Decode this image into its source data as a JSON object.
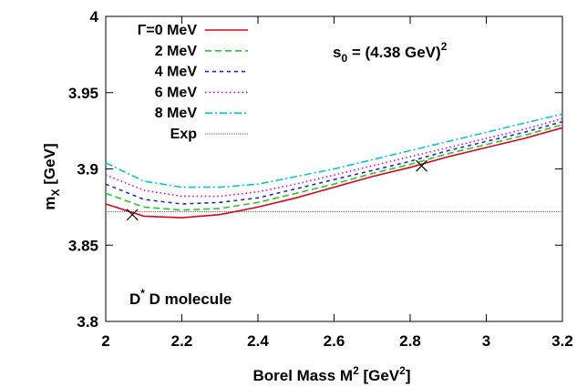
{
  "chart_data": {
    "type": "line",
    "xlabel": "Borel Mass M",
    "xlabel_sup": "2",
    "xlabel_unit_pre": " [GeV",
    "xlabel_unit_sup": "2",
    "xlabel_unit_post": "]",
    "ylabel_main": "m",
    "ylabel_sub": "X",
    "ylabel_unit": " [GeV]",
    "xlim": [
      2.0,
      3.2
    ],
    "ylim": [
      3.8,
      4.0
    ],
    "x_ticks": [
      "2",
      "2.2",
      "2.4",
      "2.6",
      "2.8",
      "3",
      "3.2"
    ],
    "x_tick_values": [
      2.0,
      2.2,
      2.4,
      2.6,
      2.8,
      3.0,
      3.2
    ],
    "y_ticks": [
      "3.8",
      "3.85",
      "3.9",
      "3.95",
      "4"
    ],
    "y_tick_values": [
      3.8,
      3.85,
      3.9,
      3.95,
      4.0
    ],
    "grid": false,
    "legend_position": "top-left",
    "x": [
      2.0,
      2.1,
      2.2,
      2.3,
      2.4,
      2.5,
      2.6,
      2.7,
      2.8,
      2.9,
      3.0,
      3.1,
      3.2
    ],
    "series": [
      {
        "name": "Γ=0 MeV",
        "color": "#e3001b",
        "dash": "solid",
        "values": [
          3.877,
          3.869,
          3.868,
          3.87,
          3.875,
          3.881,
          3.888,
          3.895,
          3.901,
          3.908,
          3.914,
          3.92,
          3.927
        ]
      },
      {
        "name": "2 MeV",
        "color": "#22cc22",
        "dash": "dashed",
        "values": [
          3.884,
          3.875,
          3.873,
          3.874,
          3.878,
          3.884,
          3.89,
          3.897,
          3.903,
          3.91,
          3.916,
          3.922,
          3.929
        ]
      },
      {
        "name": "4 MeV",
        "color": "#1c2bd6",
        "dash": "dashed-short",
        "values": [
          3.89,
          3.88,
          3.877,
          3.878,
          3.881,
          3.887,
          3.893,
          3.899,
          3.905,
          3.912,
          3.918,
          3.924,
          3.931
        ]
      },
      {
        "name": "6 MeV",
        "color": "#e000e0",
        "dash": "dotted",
        "values": [
          3.896,
          3.886,
          3.882,
          3.882,
          3.885,
          3.89,
          3.896,
          3.902,
          3.908,
          3.914,
          3.92,
          3.926,
          3.933
        ]
      },
      {
        "name": "8 MeV",
        "color": "#00c8d8",
        "dash": "dash-dot",
        "values": [
          3.904,
          3.892,
          3.888,
          3.888,
          3.89,
          3.895,
          3.9,
          3.906,
          3.912,
          3.918,
          3.924,
          3.93,
          3.936
        ]
      }
    ],
    "exp_line": {
      "name": "Exp",
      "y": 3.872,
      "color": "#555555"
    },
    "markers": [
      {
        "x": 2.07,
        "y": 3.87
      },
      {
        "x": 2.83,
        "y": 3.902
      }
    ],
    "annotations": {
      "s0_main": "s",
      "s0_sub": "0",
      "s0_rest": " = (4.38 GeV)",
      "s0_sup": "2",
      "mol_main": "D",
      "mol_sup": "*",
      "mol_rest": " D molecule"
    }
  }
}
